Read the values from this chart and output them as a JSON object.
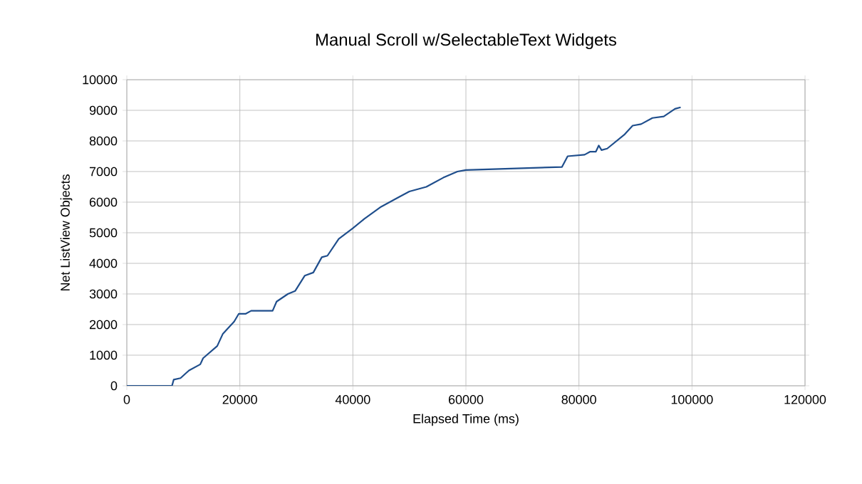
{
  "chart_data": {
    "type": "line",
    "title": "Manual Scroll w/SelectableText Widgets",
    "xlabel": "Elapsed Time (ms)",
    "ylabel": "Net ListView Objects",
    "xlim": [
      0,
      120000
    ],
    "xticks": [
      0,
      20000,
      40000,
      60000,
      80000,
      100000,
      120000
    ],
    "ylim": [
      0,
      10000
    ],
    "yticks": [
      0,
      1000,
      2000,
      3000,
      4000,
      5000,
      6000,
      7000,
      8000,
      9000,
      10000
    ],
    "grid": true,
    "marker": "none",
    "line_style": "solid",
    "series": [
      {
        "color": "#1f4e8c",
        "x": [
          0,
          8000,
          8300,
          9500,
          11000,
          13000,
          13500,
          16000,
          17000,
          19000,
          19800,
          21000,
          22000,
          25800,
          26500,
          28500,
          29800,
          31500,
          33000,
          34500,
          35500,
          37500,
          40000,
          42000,
          45000,
          48000,
          50000,
          53000,
          56000,
          58500,
          60000,
          77000,
          78000,
          81000,
          82000,
          83000,
          83500,
          84000,
          85000,
          88000,
          89500,
          91000,
          93000,
          95000,
          97000,
          98000
        ],
        "values": [
          0,
          0,
          200,
          250,
          500,
          700,
          900,
          1300,
          1700,
          2100,
          2350,
          2350,
          2450,
          2450,
          2750,
          3000,
          3100,
          3600,
          3700,
          4200,
          4250,
          4800,
          5150,
          5450,
          5850,
          6150,
          6350,
          6500,
          6800,
          7000,
          7050,
          7150,
          7500,
          7550,
          7650,
          7650,
          7850,
          7700,
          7750,
          8200,
          8500,
          8550,
          8750,
          8800,
          9050,
          9100
        ]
      }
    ]
  }
}
